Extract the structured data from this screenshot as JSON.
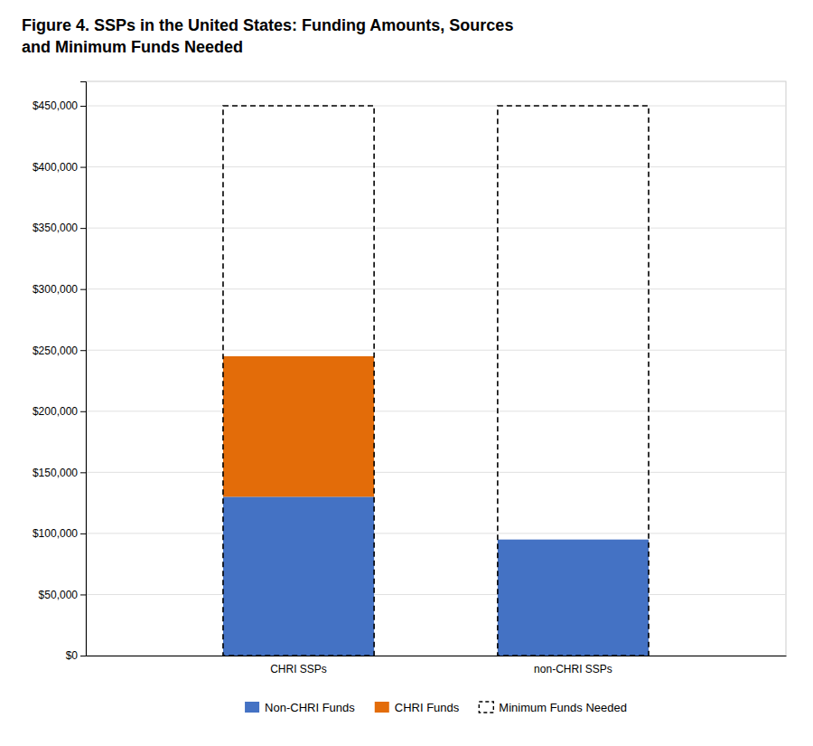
{
  "chart_data": {
    "type": "bar",
    "stacked": true,
    "title": [
      "Figure 4. SSPs in the United States: Funding Amounts, Sources",
      "and Minimum Funds Needed"
    ],
    "categories": [
      "CHRI SSPs",
      "non-CHRI SSPs"
    ],
    "series": [
      {
        "name": "Non-CHRI Funds",
        "color": "#4472C4",
        "values": [
          130000,
          95000
        ]
      },
      {
        "name": "CHRI Funds",
        "color": "#E36C09",
        "values": [
          115000,
          0
        ]
      },
      {
        "name": "Minimum Funds Needed",
        "type": "outline",
        "line_style": "dashed",
        "color": "#000000",
        "values": [
          450000,
          450000
        ]
      }
    ],
    "ylim": [
      0,
      470000
    ],
    "yticks": [
      {
        "value": 0,
        "label": "$0"
      },
      {
        "value": 50000,
        "label": "$50,000"
      },
      {
        "value": 100000,
        "label": "$100,000"
      },
      {
        "value": 150000,
        "label": "$150,000"
      },
      {
        "value": 200000,
        "label": "$200,000"
      },
      {
        "value": 250000,
        "label": "$250,000"
      },
      {
        "value": 300000,
        "label": "$300,000"
      },
      {
        "value": 350000,
        "label": "$350,000"
      },
      {
        "value": 400000,
        "label": "$400,000"
      },
      {
        "value": 450000,
        "label": "$450,000"
      }
    ],
    "grid": true,
    "legend": "bottom"
  }
}
